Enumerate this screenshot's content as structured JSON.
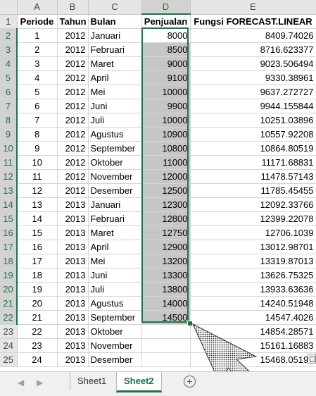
{
  "columns": [
    "A",
    "B",
    "C",
    "D",
    "E"
  ],
  "headers": [
    "Periode",
    "Tahun",
    "Bulan",
    "Penjualan",
    "Fungsi FORECAST.LINEAR"
  ],
  "row_numbers": [
    "1",
    "2",
    "3",
    "4",
    "5",
    "6",
    "7",
    "8",
    "9",
    "10",
    "11",
    "12",
    "13",
    "14",
    "15",
    "16",
    "17",
    "18",
    "19",
    "20",
    "21",
    "22",
    "23",
    "24",
    "25"
  ],
  "rows": [
    [
      "1",
      "2012",
      "Januari",
      "8000",
      "8409.74026"
    ],
    [
      "2",
      "2012",
      "Februari",
      "8500",
      "8716.623377"
    ],
    [
      "3",
      "2012",
      "Maret",
      "9000",
      "9023.506494"
    ],
    [
      "4",
      "2012",
      "April",
      "9100",
      "9330.38961"
    ],
    [
      "5",
      "2012",
      "Mei",
      "10000",
      "9637.272727"
    ],
    [
      "6",
      "2012",
      "Juni",
      "9900",
      "9944.155844"
    ],
    [
      "7",
      "2012",
      "Juli",
      "10000",
      "10251.03896"
    ],
    [
      "8",
      "2012",
      "Agustus",
      "10900",
      "10557.92208"
    ],
    [
      "9",
      "2012",
      "September",
      "10800",
      "10864.80519"
    ],
    [
      "10",
      "2012",
      "Oktober",
      "11000",
      "11171.68831"
    ],
    [
      "11",
      "2012",
      "November",
      "12000",
      "11478.57143"
    ],
    [
      "12",
      "2012",
      "Desember",
      "12500",
      "11785.45455"
    ],
    [
      "13",
      "2013",
      "Januari",
      "12300",
      "12092.33766"
    ],
    [
      "14",
      "2013",
      "Februari",
      "12800",
      "12399.22078"
    ],
    [
      "15",
      "2013",
      "Maret",
      "12750",
      "12706.1039"
    ],
    [
      "16",
      "2013",
      "April",
      "12900",
      "13012.98701"
    ],
    [
      "17",
      "2013",
      "Mei",
      "13200",
      "13319.87013"
    ],
    [
      "18",
      "2013",
      "Juni",
      "13300",
      "13626.75325"
    ],
    [
      "19",
      "2013",
      "Juli",
      "13800",
      "13933.63636"
    ],
    [
      "20",
      "2013",
      "Agustus",
      "14000",
      "14240.51948"
    ],
    [
      "21",
      "2013",
      "September",
      "14500",
      "14547.4026"
    ],
    [
      "22",
      "2013",
      "Oktober",
      "",
      "14854.28571"
    ],
    [
      "23",
      "2013",
      "November",
      "",
      "15161.16883"
    ],
    [
      "24",
      "2013",
      "Desember",
      "",
      "15468.05195"
    ]
  ],
  "tabs": {
    "sheet1": "Sheet1",
    "sheet2": "Sheet2",
    "add": "+"
  },
  "nav": {
    "prev": "◀",
    "next": "▶"
  },
  "colors": {
    "accent": "#217346",
    "selection_fill": "#c6c6c6"
  }
}
